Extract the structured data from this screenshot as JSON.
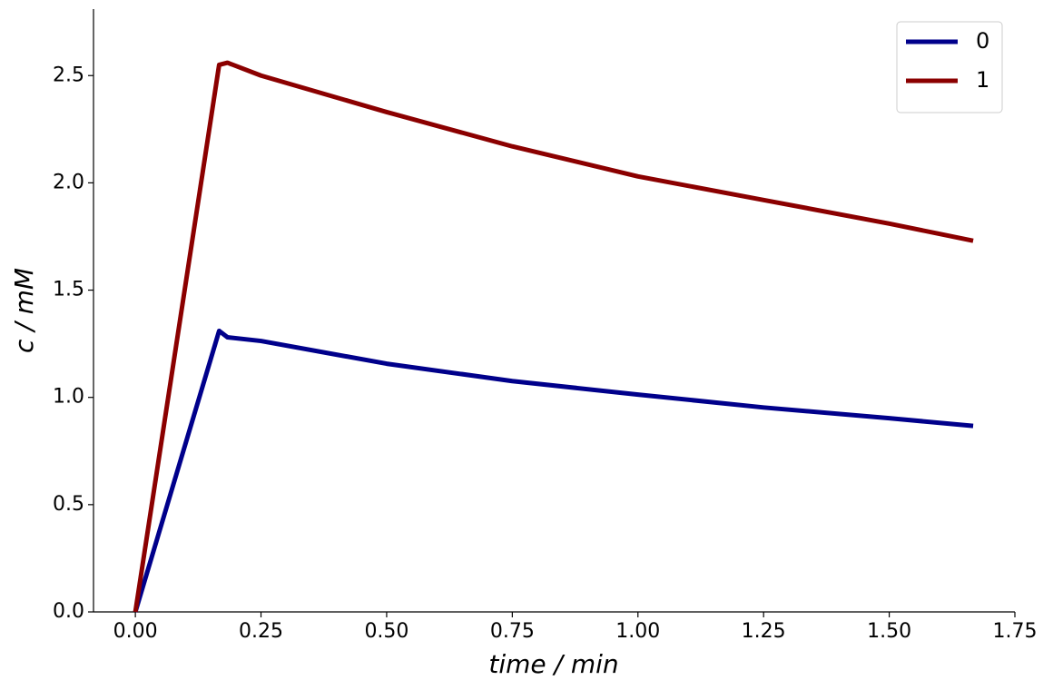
{
  "chart_data": {
    "type": "line",
    "xlabel": "time / min",
    "ylabel": "c / mM",
    "xlim": [
      -0.0833,
      1.75
    ],
    "ylim": [
      0,
      2.81
    ],
    "xticks": [
      {
        "value": 0,
        "label": "0.00"
      },
      {
        "value": 0.25,
        "label": "0.25"
      },
      {
        "value": 0.5,
        "label": "0.50"
      },
      {
        "value": 0.75,
        "label": "0.75"
      },
      {
        "value": 1,
        "label": "1.00"
      },
      {
        "value": 1.25,
        "label": "1.25"
      },
      {
        "value": 1.5,
        "label": "1.50"
      },
      {
        "value": 1.75,
        "label": "1.75"
      }
    ],
    "yticks": [
      {
        "value": 0,
        "label": "0.0"
      },
      {
        "value": 0.5,
        "label": "0.5"
      },
      {
        "value": 1,
        "label": "1.0"
      },
      {
        "value": 1.5,
        "label": "1.5"
      },
      {
        "value": 2,
        "label": "2.0"
      },
      {
        "value": 2.5,
        "label": "2.5"
      }
    ],
    "x": [
      0,
      0.1667,
      0.1833,
      0.25,
      0.5,
      0.75,
      1.0,
      1.25,
      1.5,
      1.667
    ],
    "series": [
      {
        "name": "0",
        "color": "#00008b",
        "values": [
          0,
          1.31,
          1.28,
          1.263,
          1.157,
          1.076,
          1.013,
          0.953,
          0.903,
          0.867
        ]
      },
      {
        "name": "1",
        "color": "#8b0000",
        "values": [
          0,
          2.55,
          2.56,
          2.5,
          2.33,
          2.17,
          2.03,
          1.92,
          1.81,
          1.73
        ]
      }
    ],
    "legend": "upper right",
    "grid": false
  }
}
